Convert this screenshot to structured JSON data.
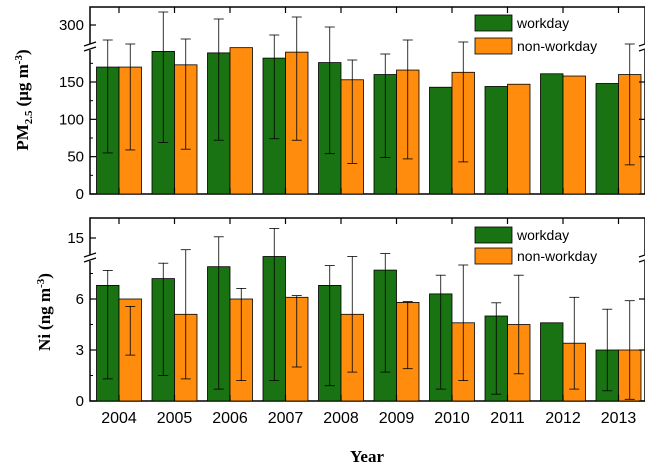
{
  "colors": {
    "workday": "#197312",
    "non_workday": "#ff8c0d",
    "axis": "#000000"
  },
  "chart_data": [
    {
      "type": "bar",
      "ylabel_main": "PM",
      "ylabel_sub": "2.5",
      "ylabel_unit": "(μg m",
      "ylabel_exp": "-3",
      "ylabel_close": ")",
      "categories": [
        "2004",
        "2005",
        "2006",
        "2007",
        "2008",
        "2009",
        "2010",
        "2011",
        "2012",
        "2013"
      ],
      "yticks_lower": [
        "0",
        "50",
        "100",
        "150"
      ],
      "yticks_upper": [
        "300"
      ],
      "axis_break": true,
      "ylim_lower": [
        0,
        200
      ],
      "ylim_upper": [
        280,
        310
      ],
      "legend": [
        "workday",
        "non-workday"
      ],
      "legend_position": "top-right",
      "series": [
        {
          "name": "workday",
          "values": [
            170,
            191,
            189,
            182,
            176,
            160,
            143,
            144,
            161,
            148
          ],
          "error_top": [
            285,
            313,
            306,
            290,
            298,
            271,
            null,
            null,
            null,
            null
          ]
        },
        {
          "name": "non-workday",
          "values": [
            170,
            173,
            196,
            190,
            153,
            166,
            163,
            147,
            158,
            160
          ],
          "error_top": [
            281,
            286,
            null,
            308,
            265,
            285,
            283,
            null,
            null,
            281
          ]
        }
      ]
    },
    {
      "type": "bar",
      "ylabel_main": "Ni",
      "ylabel_unit": "(ng m",
      "ylabel_exp": "-3",
      "ylabel_close": ")",
      "categories": [
        "2004",
        "2005",
        "2006",
        "2007",
        "2008",
        "2009",
        "2010",
        "2011",
        "2012",
        "2013"
      ],
      "xlabel": "Year",
      "yticks_lower": [
        "0",
        "3",
        "6"
      ],
      "yticks_upper": [
        "15"
      ],
      "axis_break": true,
      "ylim_lower": [
        0,
        9
      ],
      "ylim_upper": [
        13,
        16
      ],
      "legend": [
        "workday",
        "non-workday"
      ],
      "legend_position": "top-right",
      "series": [
        {
          "name": "workday",
          "values": [
            6.8,
            7.2,
            7.9,
            8.5,
            6.8,
            7.7,
            6.3,
            5.0,
            4.6,
            3.0
          ],
          "errors": [
            5.5,
            5.7,
            7.2,
            7.3,
            5.9,
            6.0,
            5.6,
            4.6,
            null,
            2.4
          ]
        },
        {
          "name": "non-workday",
          "values": [
            6.0,
            5.1,
            6.0,
            6.1,
            5.1,
            5.8,
            4.6,
            4.5,
            3.4,
            3.0
          ],
          "errors": [
            3.3,
            3.8,
            4.8,
            4.1,
            3.4,
            3.9,
            3.4,
            2.9,
            2.7,
            2.9
          ]
        }
      ]
    }
  ]
}
